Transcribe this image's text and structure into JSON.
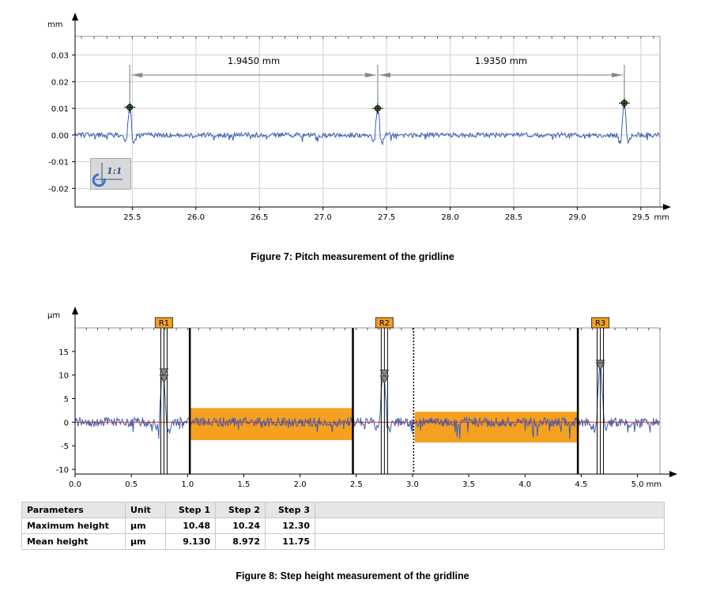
{
  "chart_data": [
    {
      "type": "line",
      "ylabel": "mm",
      "xunit": "mm",
      "xlim": [
        25.05,
        29.65
      ],
      "ylim": [
        -0.027,
        0.037
      ],
      "xticks": [
        "25.5",
        "26.0",
        "26.5",
        "27.0",
        "27.5",
        "28.0",
        "28.5",
        "29.0",
        "29.5"
      ],
      "yticks": [
        "0.03",
        "0.02",
        "0.01",
        "0.00",
        "-0.01",
        "-0.02"
      ],
      "grid": true,
      "series": [
        {
          "color": "#3a5fb5",
          "peaks": [
            {
              "x": 25.48,
              "y": 0.0105
            },
            {
              "x": 27.43,
              "y": 0.0102
            },
            {
              "x": 29.37,
              "y": 0.0122
            }
          ]
        }
      ],
      "markers": [
        {
          "x": 25.48,
          "y": 0.0104
        },
        {
          "x": 27.43,
          "y": 0.01
        },
        {
          "x": 29.37,
          "y": 0.012
        }
      ],
      "annotations": [
        {
          "text": "1.9450 mm",
          "x1": 25.48,
          "x2": 27.43
        },
        {
          "text": "1.9350 mm",
          "x1": 27.43,
          "x2": 29.37
        }
      ],
      "icon": "one-to-one-scale-icon",
      "ratio_label": "1:1"
    },
    {
      "type": "line",
      "ylabel": "µm",
      "xunit": "mm",
      "xlim": [
        0.0,
        5.2
      ],
      "ylim": [
        -11,
        20
      ],
      "xticks": [
        "0.0",
        "0.5",
        "1.0",
        "1.5",
        "2.0",
        "2.5",
        "3.0",
        "3.5",
        "4.0",
        "4.5",
        "5.0"
      ],
      "yticks": [
        "15",
        "10",
        "5",
        "0",
        "-5",
        "-10"
      ],
      "grid": false,
      "series": [
        {
          "color": "#3a5fb5",
          "peaks": [
            {
              "x": 0.78,
              "y": 10.5
            },
            {
              "x": 2.74,
              "y": 10.2
            },
            {
              "x": 4.67,
              "y": 12.3
            }
          ]
        }
      ],
      "reference_line": {
        "y": 0,
        "color": "#e03020"
      },
      "bands": [
        {
          "x1": 1.02,
          "x2": 2.47,
          "y1": -3.8,
          "y2": 3.0,
          "color": "#f5a020"
        },
        {
          "x1": 3.02,
          "x2": 4.47,
          "y1": -4.3,
          "y2": 2.2,
          "color": "#f5a020"
        }
      ],
      "vertical_lines": [
        {
          "x": 1.02,
          "style": "solid"
        },
        {
          "x": 2.47,
          "style": "solid"
        },
        {
          "x": 3.01,
          "style": "dotted"
        },
        {
          "x": 4.47,
          "style": "solid"
        }
      ],
      "regions": [
        {
          "label": "R1",
          "x": 0.79,
          "marker_top": 10.48,
          "marker_mean": 9.13
        },
        {
          "label": "R2",
          "x": 2.75,
          "marker_top": 10.24,
          "marker_mean": 8.97
        },
        {
          "label": "R3",
          "x": 4.67,
          "marker_top": 12.3,
          "marker_mean": 11.75
        }
      ]
    }
  ],
  "captions": {
    "figure7": "Figure 7: Pitch measurement of the gridline",
    "figure8": "Figure 8: Step height measurement of the gridline"
  },
  "table": {
    "headers": [
      "Parameters",
      "Unit",
      "Step 1",
      "Step 2",
      "Step 3"
    ],
    "rows": [
      [
        "Maximum height",
        "µm",
        "10.48",
        "10.24",
        "12.30"
      ],
      [
        "Mean height",
        "µm",
        "9.130",
        "8.972",
        "11.75"
      ]
    ]
  }
}
